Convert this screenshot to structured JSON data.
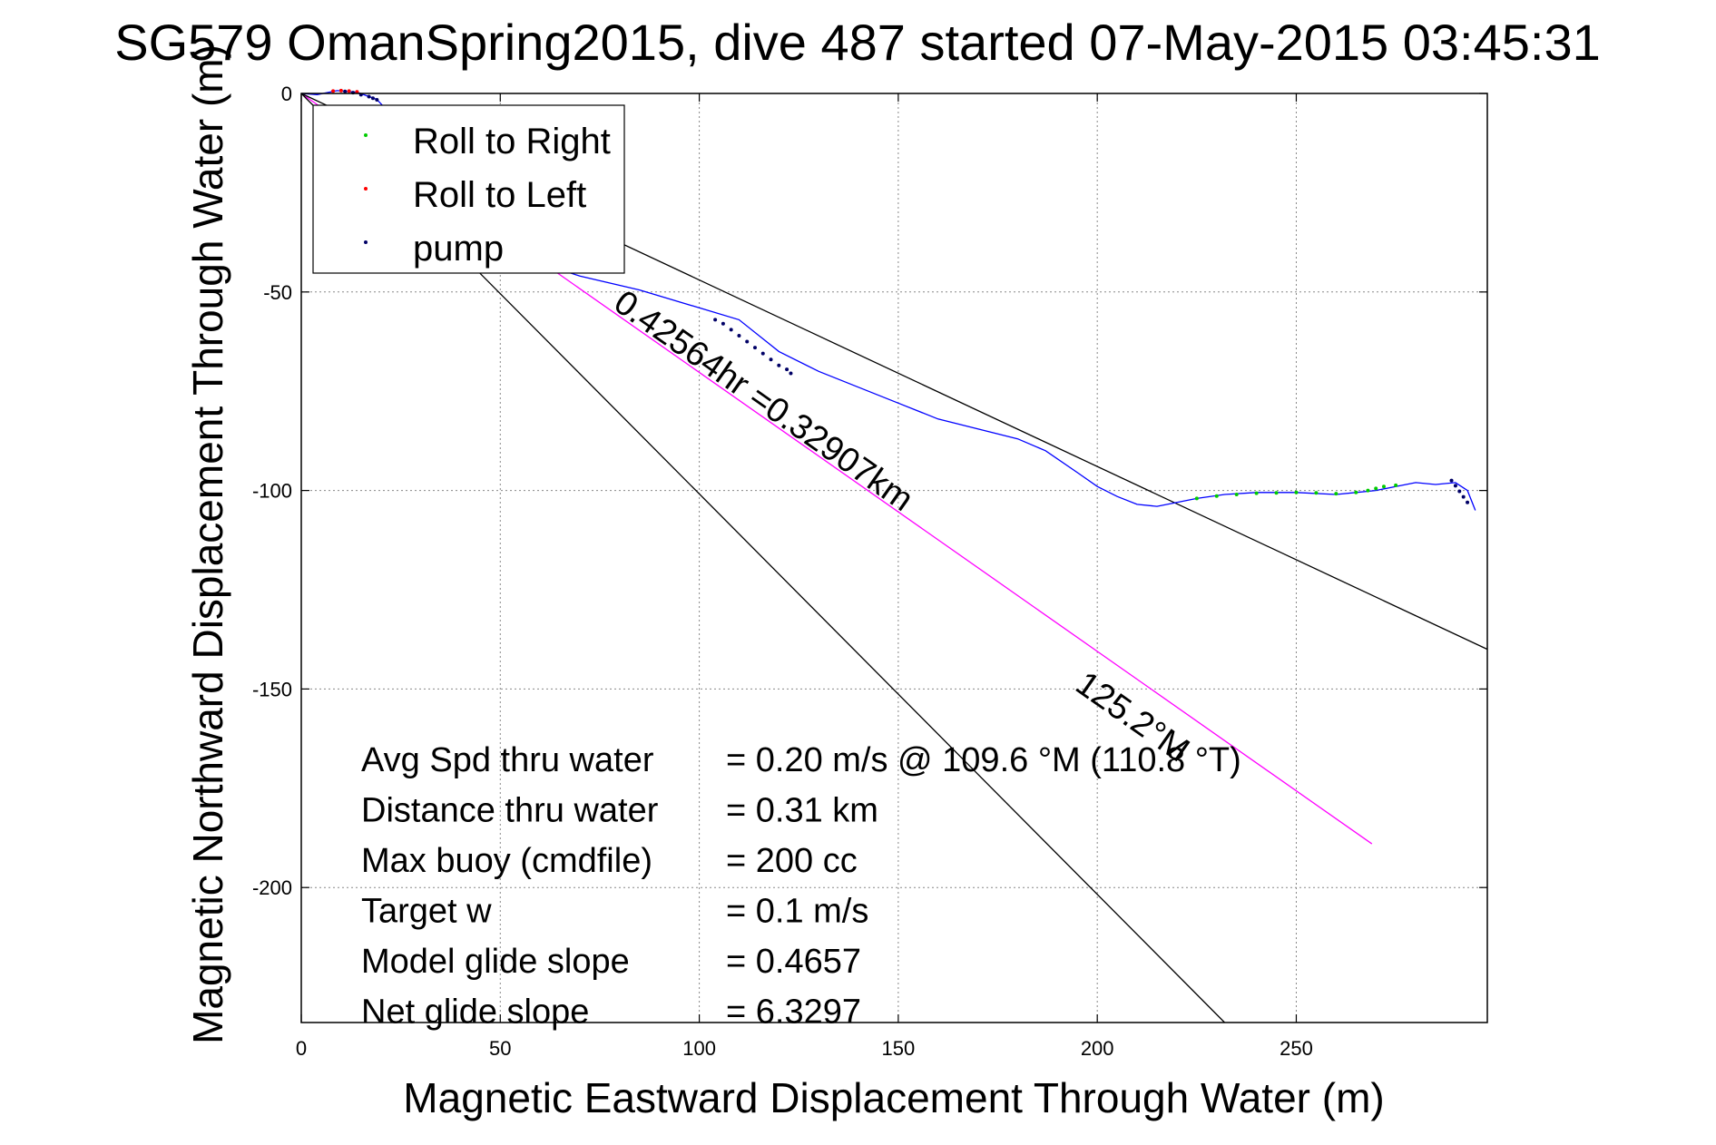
{
  "chart_data": {
    "type": "line",
    "title": "SG579 OmanSpring2015, dive 487 started 07-May-2015 03:45:31",
    "xlabel": "Magnetic Eastward Displacement Through Water (m)",
    "ylabel": "Magnetic Northward Displacement Through Water (m)",
    "xlim": [
      0,
      298
    ],
    "ylim": [
      -234,
      0
    ],
    "xticks": [
      0,
      50,
      100,
      150,
      200,
      250
    ],
    "yticks": [
      0,
      -50,
      -100,
      -150,
      -200
    ],
    "grid": true,
    "legend": {
      "placement": "top-left",
      "entries": [
        {
          "label": "Roll to Right",
          "color": "#00cc00"
        },
        {
          "label": "Roll to Left",
          "color": "#ff0000"
        },
        {
          "label": "pump",
          "color": "#000066"
        }
      ]
    },
    "series": [
      {
        "name": "",
        "color": "#0000ff",
        "x": [
          0,
          4,
          9,
          14,
          19,
          25,
          35,
          45,
          55,
          70,
          85,
          100,
          110,
          120,
          130,
          140,
          150,
          160,
          170,
          180,
          187,
          195,
          200,
          205,
          210,
          215,
          220,
          225,
          232,
          240,
          250,
          260,
          265,
          270,
          275,
          280,
          285,
          290,
          293,
          295
        ],
        "y": [
          0,
          -0.3,
          0.7,
          0.3,
          -1.5,
          -8,
          -20,
          -33,
          -41,
          -46,
          -49.5,
          -54,
          -57,
          -65,
          -70,
          -74,
          -78,
          -82,
          -84.5,
          -87,
          -90,
          -95.5,
          -99,
          -101.5,
          -103.5,
          -104,
          -103,
          -102,
          -101,
          -100.5,
          -100.5,
          -101,
          -100.5,
          -100,
          -99,
          -98,
          -98.5,
          -98,
          -100,
          -105
        ]
      },
      {
        "name": "Roll to Right",
        "color": "#00cc00",
        "x": [
          225,
          230,
          235,
          240,
          245,
          250,
          255,
          260,
          265,
          268,
          270,
          272,
          275
        ],
        "y": [
          -102,
          -101.4,
          -101,
          -100.7,
          -100.6,
          -100.5,
          -100.6,
          -100.8,
          -100.5,
          -100,
          -99.5,
          -99,
          -98.7
        ]
      },
      {
        "name": "Roll to Left",
        "color": "#ff0000",
        "x": [
          8,
          10,
          12,
          14
        ],
        "y": [
          0.6,
          0.7,
          0.6,
          0.4
        ]
      },
      {
        "name": "pump",
        "color": "#000066",
        "x": [
          11,
          13,
          15,
          17,
          18,
          19,
          104,
          106,
          108,
          110,
          112,
          114,
          116,
          118,
          120,
          122,
          123,
          289,
          290,
          291,
          292,
          293
        ],
        "y": [
          0.5,
          0.2,
          -0.3,
          -0.8,
          -1.2,
          -1.6,
          -57,
          -58,
          -59.5,
          -61,
          -62.5,
          -64,
          -65.5,
          -67,
          -68.5,
          -69.5,
          -70.5,
          -97.5,
          -98.8,
          -100.2,
          -101.6,
          -103
        ]
      }
    ],
    "reference_lines": [
      {
        "name": "course",
        "color": "#ff00ff",
        "x": [
          0,
          269
        ],
        "y": [
          0,
          -189
        ]
      },
      {
        "name": "glide-slope-upper",
        "color": "#000000",
        "x": [
          0,
          298
        ],
        "y": [
          0,
          -140
        ]
      },
      {
        "name": "glide-slope-lower",
        "color": "#000000",
        "x": [
          0,
          232
        ],
        "y": [
          0,
          -234
        ]
      }
    ],
    "annotations": [
      {
        "text": "0.42564hr =0.32907km",
        "x": 78,
        "y": -54,
        "angle_deg": 35.1
      },
      {
        "text": "125.2°M",
        "x": 194,
        "y": -150,
        "angle_deg": 35.1
      }
    ],
    "stats": [
      {
        "label": "Avg Spd thru water",
        "value": "=  0.20 m/s @ 109.6 °M (110.8 °T)"
      },
      {
        "label": "Distance thru water",
        "value": "=  0.31 km"
      },
      {
        "label": "Max buoy (cmdfile)",
        "value": "= 200 cc"
      },
      {
        "label": "Target w",
        "value": "= 0.1 m/s"
      },
      {
        "label": "Model glide slope",
        "value": "= 0.4657"
      },
      {
        "label": "Net glide slope",
        "value": "= 6.3297"
      }
    ]
  }
}
